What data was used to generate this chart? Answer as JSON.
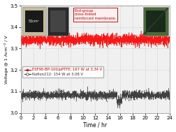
{
  "xlabel": "Time / hr",
  "ylabel": "Voltage @ 1 Acm⁻² / V",
  "ylim": [
    3.0,
    3.5
  ],
  "xlim": [
    0,
    24
  ],
  "yticks": [
    3.0,
    3.1,
    3.2,
    3.3,
    3.4,
    3.5
  ],
  "xticks": [
    0,
    2,
    4,
    6,
    8,
    10,
    12,
    14,
    16,
    18,
    20,
    22,
    24
  ],
  "red_mean": 3.34,
  "red_noise": 0.013,
  "black_mean": 3.083,
  "black_noise": 0.01,
  "black_dip_start": 15.5,
  "black_dip_end": 16.3,
  "black_dip_value": 3.055,
  "n_points": 2000,
  "red_color": "#ff0000",
  "black_color": "#222222",
  "legend_red": "ESF90-BP-100/pPTFE: 167 W at 3.34 V",
  "legend_black": "Nafion212: 154 W at 3.08 V",
  "legend_red_color": "#cc0000",
  "legend_black_color": "#333333",
  "annotation_text": "End-group\ncross-linked\nreinforced membrane.",
  "annotation_box_color": "#fff0f0",
  "annotation_box_edge": "#cc0000",
  "background_color": "#f0f0f0",
  "grid_color": "#bbbbbb",
  "photo1_color": "#c8bfa0",
  "photo1_inner": "#111111",
  "photo1_label": "50cm²",
  "photo2_color": "#2a2a2a",
  "photo3_color": "#3a5a2a",
  "photo3_inner": "#111111"
}
